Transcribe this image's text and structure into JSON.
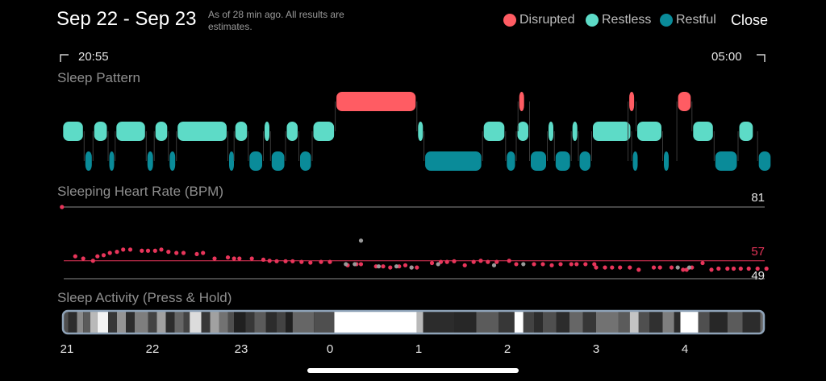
{
  "header": {
    "title": "Sep 22 - Sep 23",
    "note": "As of 28 min ago. All results are estimates.",
    "close_label": "Close"
  },
  "legend": [
    {
      "label": "Disrupted",
      "color": "#ff5c63"
    },
    {
      "label": "Restless",
      "color": "#5ddbc7"
    },
    {
      "label": "Restful",
      "color": "#0a8b99"
    }
  ],
  "time_range": {
    "start": "20:55",
    "end": "05:00"
  },
  "sections": {
    "pattern": "Sleep Pattern",
    "heart_rate": "Sleeping Heart Rate (BPM)",
    "activity": "Sleep Activity (Press & Hold)"
  },
  "colors": {
    "disrupted": "#ff5c63",
    "restless": "#5ddbc7",
    "restful": "#0a8b99",
    "hr_point": "#e8355a",
    "hr_grey": "#9a9a9a",
    "frame": "#8fa3b8"
  },
  "sleep_pattern": [
    {
      "state": "restless",
      "start": 20.98,
      "end": 21.23
    },
    {
      "state": "restful",
      "start": 21.23,
      "end": 21.33
    },
    {
      "state": "restless",
      "start": 21.33,
      "end": 21.5
    },
    {
      "state": "restful",
      "start": 21.5,
      "end": 21.58
    },
    {
      "state": "restless",
      "start": 21.58,
      "end": 21.93
    },
    {
      "state": "restful",
      "start": 21.93,
      "end": 22.02
    },
    {
      "state": "restless",
      "start": 22.02,
      "end": 22.18
    },
    {
      "state": "restful",
      "start": 22.18,
      "end": 22.27
    },
    {
      "state": "restless",
      "start": 22.27,
      "end": 22.85
    },
    {
      "state": "restful",
      "start": 22.85,
      "end": 22.92
    },
    {
      "state": "restless",
      "start": 22.92,
      "end": 23.08
    },
    {
      "state": "restful",
      "start": 23.08,
      "end": 23.25
    },
    {
      "state": "restless",
      "start": 23.25,
      "end": 23.33
    },
    {
      "state": "restful",
      "start": 23.33,
      "end": 23.5
    },
    {
      "state": "restless",
      "start": 23.5,
      "end": 23.65
    },
    {
      "state": "restful",
      "start": 23.65,
      "end": 23.8
    },
    {
      "state": "restless",
      "start": 23.8,
      "end": 24.06
    },
    {
      "state": "disrupted",
      "start": 24.06,
      "end": 24.98
    },
    {
      "state": "restless",
      "start": 24.98,
      "end": 25.06
    },
    {
      "state": "restful",
      "start": 25.06,
      "end": 25.72
    },
    {
      "state": "restless",
      "start": 25.72,
      "end": 25.98
    },
    {
      "state": "restful",
      "start": 25.98,
      "end": 26.1
    },
    {
      "state": "restless",
      "start": 26.1,
      "end": 26.25
    },
    {
      "state": "disrupted",
      "start": 26.12,
      "end": 26.2
    },
    {
      "state": "restful",
      "start": 26.25,
      "end": 26.45
    },
    {
      "state": "restless",
      "start": 26.45,
      "end": 26.53
    },
    {
      "state": "restful",
      "start": 26.53,
      "end": 26.72
    },
    {
      "state": "restless",
      "start": 26.72,
      "end": 26.8
    },
    {
      "state": "restful",
      "start": 26.8,
      "end": 26.95
    },
    {
      "state": "restless",
      "start": 26.95,
      "end": 27.4
    },
    {
      "state": "restful",
      "start": 27.4,
      "end": 27.45
    },
    {
      "state": "disrupted",
      "start": 27.36,
      "end": 27.44
    },
    {
      "state": "restless",
      "start": 27.45,
      "end": 27.75
    },
    {
      "state": "restful",
      "start": 27.75,
      "end": 27.82
    },
    {
      "state": "disrupted",
      "start": 27.91,
      "end": 28.08
    },
    {
      "state": "restless",
      "start": 28.08,
      "end": 28.33
    },
    {
      "state": "restful",
      "start": 28.33,
      "end": 28.6
    },
    {
      "state": "restless",
      "start": 28.6,
      "end": 28.78
    },
    {
      "state": "restful",
      "start": 28.82,
      "end": 28.98
    }
  ],
  "heart_rate": {
    "max_label": "81",
    "avg_label": "57",
    "min_label": "49",
    "max": 81,
    "avg": 57,
    "min": 49,
    "points": [
      [
        20.98,
        81
      ],
      [
        21.13,
        59
      ],
      [
        21.22,
        58
      ],
      [
        21.33,
        57
      ],
      [
        21.38,
        59
      ],
      [
        21.45,
        59.5
      ],
      [
        21.52,
        60.5
      ],
      [
        21.6,
        61
      ],
      [
        21.67,
        62
      ],
      [
        21.75,
        62
      ],
      [
        21.88,
        61.5
      ],
      [
        21.95,
        61.5
      ],
      [
        22.03,
        61.5
      ],
      [
        22.1,
        62
      ],
      [
        22.18,
        61
      ],
      [
        22.27,
        60.5
      ],
      [
        22.35,
        60.5
      ],
      [
        22.5,
        60
      ],
      [
        22.57,
        60.5
      ],
      [
        22.7,
        58
      ],
      [
        22.85,
        58.5
      ],
      [
        22.92,
        58
      ],
      [
        22.98,
        58
      ],
      [
        23.12,
        58
      ],
      [
        23.25,
        57.5
      ],
      [
        23.32,
        57
      ],
      [
        23.4,
        56.8
      ],
      [
        23.5,
        56.8
      ],
      [
        23.58,
        56.8
      ],
      [
        23.68,
        56.5
      ],
      [
        23.78,
        56.2
      ],
      [
        23.9,
        56.5
      ],
      [
        24.0,
        56.5
      ],
      [
        24.2,
        55
      ],
      [
        24.3,
        55.5
      ],
      [
        24.35,
        55.5
      ],
      [
        24.52,
        54.5
      ],
      [
        24.6,
        54.5
      ],
      [
        24.68,
        54
      ],
      [
        24.78,
        54.5
      ],
      [
        24.85,
        55
      ],
      [
        24.92,
        54
      ],
      [
        24.98,
        54
      ],
      [
        25.15,
        56
      ],
      [
        25.25,
        56.5
      ],
      [
        25.32,
        56.5
      ],
      [
        25.4,
        56.8
      ],
      [
        25.52,
        55
      ],
      [
        25.62,
        56.5
      ],
      [
        25.7,
        57
      ],
      [
        25.78,
        56.5
      ],
      [
        25.88,
        56.5
      ],
      [
        26.02,
        57
      ],
      [
        26.1,
        55.5
      ],
      [
        26.3,
        55.5
      ],
      [
        26.4,
        55.5
      ],
      [
        26.5,
        55
      ],
      [
        26.6,
        55.5
      ],
      [
        26.72,
        55.5
      ],
      [
        26.78,
        55.5
      ],
      [
        26.88,
        55.5
      ],
      [
        26.98,
        55.5
      ],
      [
        27.0,
        54
      ],
      [
        27.1,
        54
      ],
      [
        27.18,
        54
      ],
      [
        27.27,
        54
      ],
      [
        27.38,
        54
      ],
      [
        27.48,
        53
      ],
      [
        27.65,
        54
      ],
      [
        27.72,
        54
      ],
      [
        27.85,
        54
      ],
      [
        27.98,
        53
      ],
      [
        28.02,
        53
      ],
      [
        28.08,
        54
      ],
      [
        28.2,
        56
      ],
      [
        28.3,
        53
      ],
      [
        28.38,
        53.5
      ],
      [
        28.48,
        53.5
      ],
      [
        28.55,
        53.5
      ],
      [
        28.63,
        53.5
      ],
      [
        28.72,
        53.5
      ],
      [
        28.82,
        53.5
      ],
      [
        28.92,
        53.5
      ]
    ],
    "grey_points": [
      [
        24.35,
        66
      ],
      [
        24.18,
        55.5
      ],
      [
        24.28,
        55.5
      ],
      [
        24.55,
        54.5
      ],
      [
        24.75,
        54.5
      ],
      [
        24.92,
        54
      ],
      [
        25.22,
        55.5
      ],
      [
        25.85,
        55
      ],
      [
        26.18,
        55.5
      ],
      [
        27.92,
        54
      ],
      [
        28.05,
        54
      ]
    ]
  },
  "sleep_activity": {
    "segments": [
      [
        20.98,
        0.25
      ],
      [
        21.05,
        0.1
      ],
      [
        21.15,
        0.5
      ],
      [
        21.22,
        0.3
      ],
      [
        21.3,
        0.7
      ],
      [
        21.38,
        0.95
      ],
      [
        21.5,
        0.15
      ],
      [
        21.6,
        0.55
      ],
      [
        21.7,
        0.1
      ],
      [
        21.8,
        0.45
      ],
      [
        21.95,
        0.2
      ],
      [
        22.05,
        0.6
      ],
      [
        22.15,
        0.1
      ],
      [
        22.25,
        0.35
      ],
      [
        22.35,
        0.2
      ],
      [
        22.42,
        0.85
      ],
      [
        22.55,
        0.15
      ],
      [
        22.65,
        0.6
      ],
      [
        22.75,
        0.4
      ],
      [
        22.85,
        0.25
      ],
      [
        22.92,
        0.05
      ],
      [
        23.05,
        0.15
      ],
      [
        23.15,
        0.3
      ],
      [
        23.28,
        0.1
      ],
      [
        23.4,
        0.2
      ],
      [
        23.5,
        0.05
      ],
      [
        23.58,
        0.35
      ],
      [
        23.82,
        0.25
      ],
      [
        24.05,
        1.0
      ],
      [
        24.98,
        0.7
      ],
      [
        25.05,
        0.1
      ],
      [
        25.4,
        0.08
      ],
      [
        25.65,
        0.3
      ],
      [
        25.9,
        0.15
      ],
      [
        26.08,
        1.0
      ],
      [
        26.18,
        0.2
      ],
      [
        26.3,
        0.1
      ],
      [
        26.4,
        0.25
      ],
      [
        26.55,
        0.1
      ],
      [
        26.7,
        0.35
      ],
      [
        26.85,
        0.15
      ],
      [
        27.0,
        0.4
      ],
      [
        27.25,
        0.3
      ],
      [
        27.38,
        0.75
      ],
      [
        27.48,
        0.25
      ],
      [
        27.6,
        0.12
      ],
      [
        27.75,
        0.45
      ],
      [
        27.88,
        0.1
      ],
      [
        27.95,
        1.0
      ],
      [
        28.15,
        0.25
      ],
      [
        28.28,
        0.08
      ],
      [
        28.48,
        0.3
      ],
      [
        28.65,
        0.1
      ],
      [
        28.85,
        0.35
      ]
    ]
  },
  "x_axis": {
    "ticks": [
      {
        "label": "21",
        "value": 21
      },
      {
        "label": "22",
        "value": 22
      },
      {
        "label": "23",
        "value": 23
      },
      {
        "label": "0",
        "value": 24
      },
      {
        "label": "1",
        "value": 25
      },
      {
        "label": "2",
        "value": 26
      },
      {
        "label": "3",
        "value": 27
      },
      {
        "label": "4",
        "value": 28
      }
    ]
  }
}
